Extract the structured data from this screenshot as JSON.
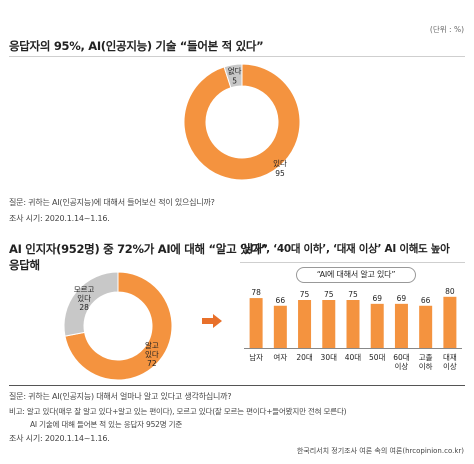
{
  "unit_label": "(단위 : %)",
  "chart1": {
    "title": "응답자의 95%, AI(인공지능) 기술 “들어본 적 있다”",
    "question": "질문: 귀하는 AI(인공지능)에 대해서 들어보신 적이 있으십니까?",
    "period": "조사 시기: 2020.1.14~1.16."
  },
  "chart2": {
    "title_line1": "AI 인지자(952명) 중 72%가 AI에 대해 “알고 있다”",
    "title_line2": "응답해"
  },
  "chart3": {
    "title": "‘남자’, ‘40대 이하’, ‘대재 이상’ AI 이해도 높아",
    "pill": "“AI에 대해서 알고 있다”"
  },
  "footer": {
    "question": "질문: 귀하는 AI(인공지능) 대해서 얼마나 알고 있다고 생각하십니까?",
    "note_line1": "비고: 알고 있다(매우 잘 알고 있다+알고 있는 편이다), 모르고 있다(잘 모르는 편이다+들어봤지만 전혀 모른다)",
    "note_line2": "AI 기술에 대해 들어본 적 있는 응답자 952명 기준",
    "period": "조사 시기: 2020.1.14~1.16.",
    "source": "한국리서치 정기조사 여론 속의 여론(hrcopinion.co.kr)"
  },
  "colors": {
    "orange": "#f4933f",
    "gray": "#c8c8c8",
    "arrow": "#e8702a"
  },
  "chart_data": [
    {
      "type": "pie",
      "title": "응답자의 95%, AI(인공지능) 기술 “들어본 적 있다”",
      "slices": [
        {
          "name": "있다",
          "value": 95,
          "color": "#f4933f"
        },
        {
          "name": "없다",
          "value": 5,
          "color": "#c8c8c8"
        }
      ]
    },
    {
      "type": "pie",
      "title": "AI 인지자(952명) 중 72%가 AI에 대해 “알고 있다” 응답해",
      "slices": [
        {
          "name": "알고 있다",
          "value": 72,
          "color": "#f4933f"
        },
        {
          "name": "모르고 있다",
          "value": 28,
          "color": "#c8c8c8"
        }
      ]
    },
    {
      "type": "bar",
      "title": "‘남자’, ‘40대 이하’, ‘대재 이상’ AI 이해도 높아",
      "subtitle": "“AI에 대해서 알고 있다”",
      "categories": [
        "남자",
        "여자",
        "20대",
        "30대",
        "40대",
        "50대",
        "60대 이상",
        "고졸 이하",
        "대재 이상"
      ],
      "values": [
        78,
        66,
        75,
        75,
        75,
        69,
        69,
        66,
        80
      ],
      "ylim": [
        0,
        100
      ],
      "color": "#f4933f"
    }
  ]
}
